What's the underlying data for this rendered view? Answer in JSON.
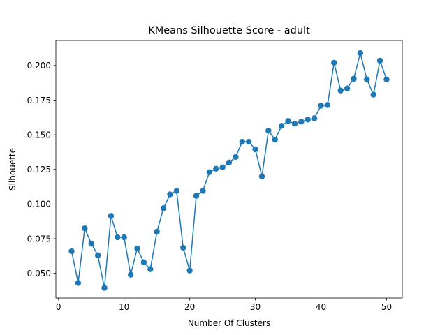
{
  "chart_data": {
    "type": "line",
    "title": "KMeans Silhouette Score - adult",
    "xlabel": "Number Of Clusters",
    "ylabel": "Silhouette",
    "xlim": [
      -0.4,
      52.4
    ],
    "ylim": [
      0.0322,
      0.2181
    ],
    "x_ticks": [
      0,
      10,
      20,
      30,
      40,
      50
    ],
    "y_ticks": [
      0.05,
      0.075,
      0.1,
      0.125,
      0.15,
      0.175,
      0.2
    ],
    "grid": false,
    "marker": "circle",
    "series": [
      {
        "color": "#1f77b4",
        "x": [
          2,
          3,
          4,
          5,
          6,
          7,
          8,
          9,
          10,
          11,
          12,
          13,
          14,
          15,
          16,
          17,
          18,
          19,
          20,
          21,
          22,
          23,
          24,
          25,
          26,
          27,
          28,
          29,
          30,
          31,
          32,
          33,
          34,
          35,
          36,
          37,
          38,
          39,
          40,
          41,
          42,
          43,
          44,
          45,
          46,
          47,
          48,
          49,
          50
        ],
        "y": [
          0.066,
          0.043,
          0.0825,
          0.0715,
          0.063,
          0.0395,
          0.0915,
          0.076,
          0.076,
          0.049,
          0.068,
          0.058,
          0.053,
          0.08,
          0.097,
          0.107,
          0.1095,
          0.0685,
          0.052,
          0.106,
          0.1095,
          0.123,
          0.1255,
          0.1265,
          0.13,
          0.134,
          0.145,
          0.145,
          0.1395,
          0.12,
          0.153,
          0.1465,
          0.1565,
          0.16,
          0.158,
          0.1595,
          0.161,
          0.162,
          0.171,
          0.1715,
          0.202,
          0.182,
          0.1835,
          0.1905,
          0.209,
          0.19,
          0.179,
          0.2035,
          0.19
        ]
      }
    ]
  }
}
